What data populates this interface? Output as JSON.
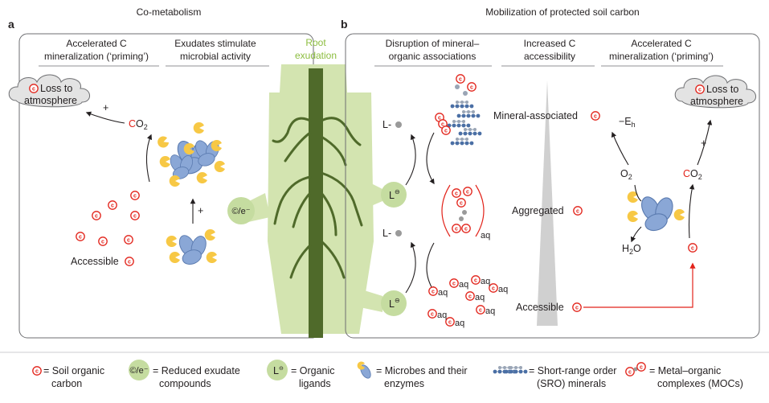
{
  "panel_a": {
    "letter": "a",
    "title": "Co-metabolism",
    "col1": [
      "Accelerated C",
      "mineralization (‘priming’)"
    ],
    "col2": [
      "Exudates stimulate",
      "microbial activity"
    ],
    "cloud": [
      "Loss to",
      "atmosphere"
    ],
    "co2_c": "C",
    "co2_o": "O",
    "co2_sub": "2",
    "plus": "+",
    "plus2": "+",
    "accessible": "Accessible"
  },
  "root": {
    "label": [
      "Root",
      "exudation"
    ],
    "exudate_symbol": "©/e⁻"
  },
  "panel_b": {
    "letter": "b",
    "title": "Mobilization of protected soil carbon",
    "col1": [
      "Disruption of mineral–",
      "organic associations"
    ],
    "col2": [
      "Increased C",
      "accessibility"
    ],
    "col3": [
      "Accelerated C",
      "mineralization (‘priming’)"
    ],
    "mineral_associated": "Mineral-associated",
    "aggregated": "Aggregated",
    "accessible": "Accessible",
    "l_dash_1": "L-",
    "l_dash_2": "L-",
    "ligand": "L",
    "aq": "aq",
    "eh": "−E",
    "eh_sub": "h",
    "o2": "O",
    "o2_sub": "2",
    "h2o_h": "H",
    "h2o_sub": "2",
    "h2o_o": "O",
    "co2_c": "C",
    "co2_o": "O",
    "co2_sub": "2",
    "plus": "+",
    "cloud": [
      "Loss to",
      "atmosphere"
    ]
  },
  "legend": [
    {
      "label": [
        "= Soil organic",
        "carbon"
      ],
      "icon": "soil-organic-carbon-icon"
    },
    {
      "label": [
        "= Reduced exudate",
        "compounds"
      ],
      "icon": "reduced-exudate-icon"
    },
    {
      "label": [
        "= Organic",
        "ligands"
      ],
      "icon": "organic-ligand-icon"
    },
    {
      "label": [
        "= Microbes and their",
        "enzymes"
      ],
      "icon": "microbe-enzyme-icon"
    },
    {
      "label": [
        "= Short-range order",
        "(SRO) minerals"
      ],
      "icon": "sro-mineral-icon"
    },
    {
      "label": [
        "= Metal–organic",
        "complexes (MOCs)"
      ],
      "icon": "moc-icon"
    }
  ],
  "colors": {
    "soil_carbon_red": "#e2231a",
    "root_green": "#d3e4b0",
    "root_stem": "#4f6a2a",
    "microbe_blue": "#8aa7d6",
    "enzyme_yellow": "#f7c845",
    "mineral_blue": "#4a6fa5",
    "gradient_grey": "#d0d0d0"
  }
}
